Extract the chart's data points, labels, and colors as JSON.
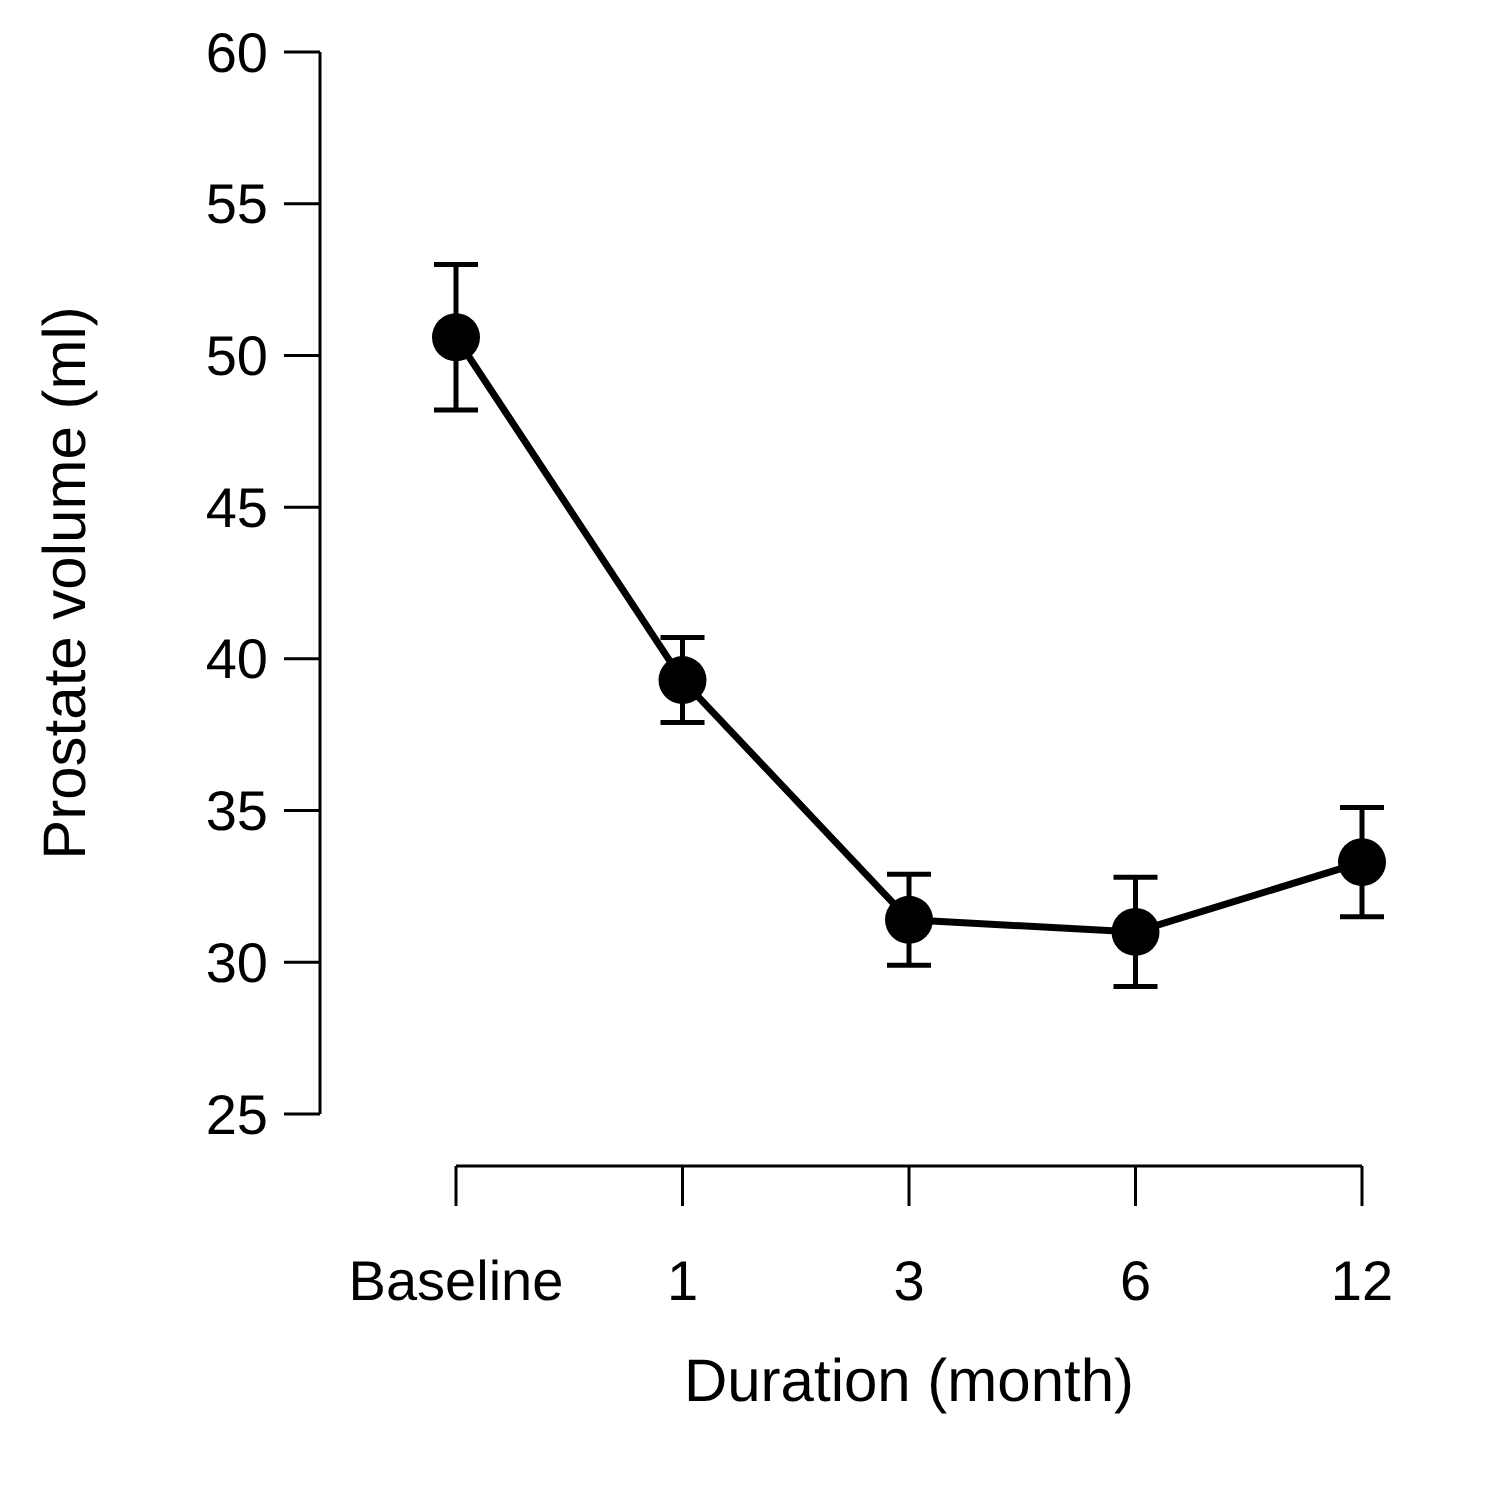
{
  "chart_data": {
    "type": "line",
    "xlabel": "Duration (month)",
    "ylabel": "Prostate volume (ml)",
    "categories": [
      "Baseline",
      "1",
      "3",
      "6",
      "12"
    ],
    "series": [
      {
        "color": "#000000",
        "values": [
          50.6,
          39.3,
          31.4,
          31.0,
          33.3
        ],
        "errors": [
          2.4,
          1.4,
          1.5,
          1.8,
          1.8
        ]
      }
    ],
    "ylim": [
      25,
      60
    ],
    "yticks": [
      25,
      30,
      35,
      40,
      45,
      50,
      55,
      60
    ],
    "marker": "circle",
    "line_style": "solid",
    "grid": false
  }
}
